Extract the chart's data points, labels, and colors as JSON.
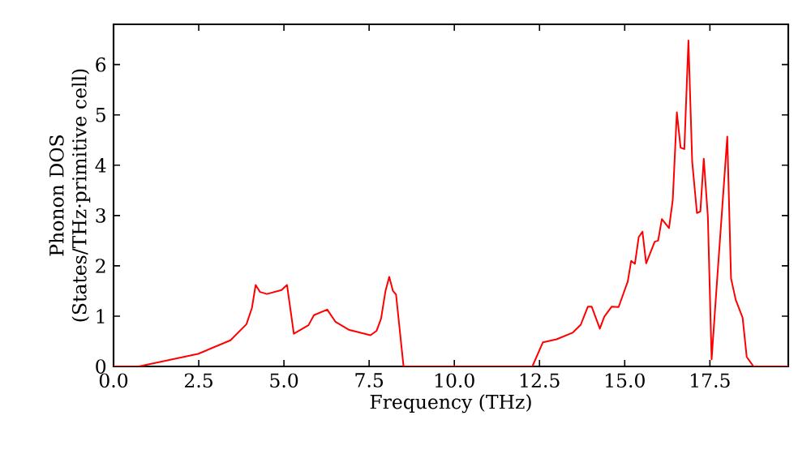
{
  "chart_data": {
    "type": "line",
    "xlabel": "Frequency (THz)",
    "ylabel": "Phonon DOS (States/THz·primitive cell)",
    "x": [
      0,
      0.74,
      2.48,
      3.43,
      3.9,
      4.06,
      4.17,
      4.3,
      4.5,
      4.93,
      5.09,
      5.29,
      5.72,
      5.88,
      6.27,
      6.51,
      6.9,
      7.54,
      7.72,
      7.85,
      7.98,
      8.09,
      8.2,
      8.29,
      8.51,
      10.5,
      12.29,
      12.6,
      13.0,
      13.47,
      13.71,
      13.92,
      14.03,
      14.27,
      14.4,
      14.62,
      14.82,
      15.09,
      15.19,
      15.3,
      15.41,
      15.52,
      15.63,
      15.88,
      15.98,
      16.09,
      16.3,
      16.41,
      16.53,
      16.64,
      16.75,
      16.87,
      16.98,
      17.12,
      17.22,
      17.32,
      17.44,
      17.55,
      17.72,
      18.01,
      18.12,
      18.26,
      18.46,
      18.58,
      18.78,
      19.8
    ],
    "series": [
      {
        "color": "#ff0000",
        "values": [
          0,
          0,
          0.25,
          0.52,
          0.84,
          1.16,
          1.62,
          1.48,
          1.44,
          1.52,
          1.62,
          0.65,
          0.82,
          1.02,
          1.13,
          0.89,
          0.73,
          0.62,
          0.71,
          0.95,
          1.5,
          1.78,
          1.5,
          1.43,
          0,
          0,
          0,
          0.48,
          0.54,
          0.67,
          0.83,
          1.19,
          1.19,
          0.75,
          0.99,
          1.19,
          1.18,
          1.69,
          2.1,
          2.04,
          2.57,
          2.68,
          2.05,
          2.48,
          2.5,
          2.93,
          2.75,
          3.31,
          5.05,
          4.35,
          4.32,
          6.48,
          4.07,
          3.05,
          3.08,
          4.13,
          2.98,
          0.14,
          1.8,
          4.57,
          1.75,
          1.32,
          0.97,
          0.19,
          0,
          0
        ]
      }
    ],
    "xlim": [
      0,
      19.8
    ],
    "ylim": [
      0,
      6.8
    ],
    "xticks": [
      {
        "value": 0,
        "label": "0.0"
      },
      {
        "value": 2.5,
        "label": "2.5"
      },
      {
        "value": 5,
        "label": "5.0"
      },
      {
        "value": 7.5,
        "label": "7.5"
      },
      {
        "value": 10,
        "label": "10.0"
      },
      {
        "value": 12.5,
        "label": "12.5"
      },
      {
        "value": 15,
        "label": "15.0"
      },
      {
        "value": 17.5,
        "label": "17.5"
      }
    ],
    "yticks": [
      0,
      1,
      2,
      3,
      4,
      5,
      6
    ],
    "marker": "none",
    "line_style": "solid"
  }
}
